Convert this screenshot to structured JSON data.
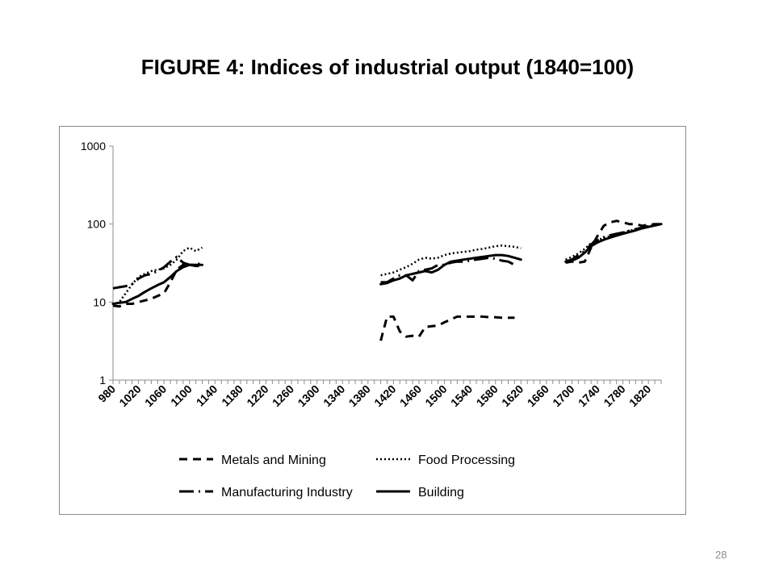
{
  "slide": {
    "title": "FIGURE 4: Indices of industrial output (1840=100)",
    "page_number": "28"
  },
  "chart_data": {
    "type": "line",
    "title": "",
    "xlabel": "",
    "ylabel": "",
    "y_scale": "log",
    "ylim": [
      1,
      1000
    ],
    "y_ticks": [
      1,
      10,
      100,
      1000
    ],
    "y_tick_labels": [
      "1",
      "10",
      "100",
      "1000"
    ],
    "xlim": [
      980,
      1840
    ],
    "x_ticks": [
      980,
      1020,
      1060,
      1100,
      1140,
      1180,
      1220,
      1260,
      1300,
      1340,
      1380,
      1420,
      1460,
      1500,
      1540,
      1580,
      1620,
      1660,
      1700,
      1740,
      1780,
      1820
    ],
    "x_tick_labels": [
      "980",
      "1020",
      "1060",
      "1100",
      "1140",
      "1180",
      "1220",
      "1260",
      "1300",
      "1340",
      "1380",
      "1420",
      "1460",
      "1500",
      "1540",
      "1580",
      "1620",
      "1660",
      "1700",
      "1740",
      "1780",
      "1820"
    ],
    "grid": false,
    "legend_position": "bottom",
    "series": [
      {
        "name": "Metals and Mining",
        "style": "dashed",
        "segments": [
          [
            [
              980,
              9
            ],
            [
              990,
              8.8
            ],
            [
              1000,
              9.5
            ],
            [
              1010,
              9.5
            ],
            [
              1020,
              10
            ],
            [
              1030,
              10.5
            ],
            [
              1040,
              11
            ],
            [
              1050,
              12
            ],
            [
              1060,
              13
            ],
            [
              1070,
              18
            ],
            [
              1080,
              26
            ],
            [
              1090,
              30
            ],
            [
              1100,
              30
            ],
            [
              1110,
              29
            ],
            [
              1120,
              29
            ]
          ],
          [
            [
              1400,
              3.2
            ],
            [
              1410,
              6.5
            ],
            [
              1420,
              6.5
            ],
            [
              1430,
              4.2
            ],
            [
              1440,
              3.6
            ],
            [
              1450,
              3.7
            ],
            [
              1460,
              3.6
            ],
            [
              1470,
              4.8
            ],
            [
              1480,
              4.9
            ],
            [
              1490,
              5.0
            ],
            [
              1500,
              5.5
            ],
            [
              1510,
              6.0
            ],
            [
              1520,
              6.5
            ],
            [
              1530,
              6.5
            ],
            [
              1540,
              6.5
            ],
            [
              1550,
              6.5
            ],
            [
              1560,
              6.5
            ],
            [
              1570,
              6.4
            ],
            [
              1580,
              6.4
            ],
            [
              1590,
              6.3
            ],
            [
              1600,
              6.3
            ],
            [
              1610,
              6.3
            ]
          ],
          [
            [
              1690,
              32
            ],
            [
              1700,
              33
            ],
            [
              1710,
              32
            ],
            [
              1720,
              33
            ],
            [
              1730,
              50
            ],
            [
              1740,
              70
            ],
            [
              1750,
              95
            ],
            [
              1760,
              105
            ],
            [
              1770,
              110
            ],
            [
              1780,
              105
            ],
            [
              1790,
              100
            ],
            [
              1800,
              100
            ],
            [
              1810,
              95
            ],
            [
              1820,
              98
            ],
            [
              1830,
              100
            ],
            [
              1840,
              100
            ]
          ]
        ]
      },
      {
        "name": "Food Processing",
        "style": "dotted",
        "segments": [
          [
            [
              980,
              9
            ],
            [
              990,
              10
            ],
            [
              1000,
              13
            ],
            [
              1010,
              17
            ],
            [
              1020,
              21
            ],
            [
              1030,
              23
            ],
            [
              1040,
              25
            ],
            [
              1050,
              26
            ],
            [
              1060,
              27
            ],
            [
              1070,
              30
            ],
            [
              1080,
              35
            ],
            [
              1090,
              45
            ],
            [
              1100,
              50
            ],
            [
              1110,
              45
            ],
            [
              1120,
              50
            ]
          ],
          [
            [
              1400,
              22
            ],
            [
              1410,
              23
            ],
            [
              1420,
              24
            ],
            [
              1430,
              26
            ],
            [
              1440,
              28
            ],
            [
              1450,
              31
            ],
            [
              1460,
              35
            ],
            [
              1470,
              37
            ],
            [
              1480,
              36
            ],
            [
              1490,
              37
            ],
            [
              1500,
              40
            ],
            [
              1510,
              42
            ],
            [
              1520,
              43
            ],
            [
              1530,
              44
            ],
            [
              1540,
              45
            ],
            [
              1550,
              47
            ],
            [
              1560,
              48
            ],
            [
              1570,
              50
            ],
            [
              1580,
              52
            ],
            [
              1590,
              53
            ],
            [
              1600,
              52
            ],
            [
              1610,
              51
            ],
            [
              1620,
              49
            ]
          ],
          [
            [
              1690,
              35
            ],
            [
              1700,
              38
            ],
            [
              1710,
              42
            ],
            [
              1720,
              48
            ],
            [
              1730,
              57
            ],
            [
              1740,
              63
            ],
            [
              1750,
              66
            ],
            [
              1760,
              70
            ],
            [
              1770,
              74
            ],
            [
              1780,
              78
            ],
            [
              1790,
              82
            ],
            [
              1800,
              86
            ],
            [
              1810,
              90
            ],
            [
              1820,
              94
            ],
            [
              1830,
              97
            ],
            [
              1840,
              100
            ]
          ]
        ]
      },
      {
        "name": "Manufacturing Industry",
        "style": "dash-dot",
        "segments": [
          [
            [
              980,
              15
            ],
            [
              990,
              15.5
            ],
            [
              1000,
              16
            ],
            [
              1010,
              17
            ],
            [
              1020,
              20
            ],
            [
              1030,
              22
            ],
            [
              1040,
              23
            ],
            [
              1050,
              25
            ],
            [
              1060,
              28
            ],
            [
              1070,
              33
            ],
            [
              1080,
              38
            ],
            [
              1090,
              32
            ],
            [
              1100,
              30
            ],
            [
              1110,
              30
            ],
            [
              1120,
              32
            ]
          ],
          [
            [
              1400,
              18
            ],
            [
              1410,
              18
            ],
            [
              1420,
              20
            ],
            [
              1430,
              22
            ],
            [
              1440,
              22
            ],
            [
              1450,
              19
            ],
            [
              1460,
              25
            ],
            [
              1470,
              26
            ],
            [
              1480,
              27
            ],
            [
              1490,
              30
            ],
            [
              1500,
              30
            ],
            [
              1510,
              32
            ],
            [
              1520,
              33
            ],
            [
              1530,
              33
            ],
            [
              1540,
              34
            ],
            [
              1550,
              35
            ],
            [
              1560,
              36
            ],
            [
              1570,
              37
            ],
            [
              1580,
              36
            ],
            [
              1590,
              34
            ],
            [
              1600,
              33
            ],
            [
              1610,
              30
            ]
          ],
          [
            [
              1690,
              33
            ],
            [
              1700,
              35
            ],
            [
              1710,
              40
            ],
            [
              1720,
              45
            ],
            [
              1730,
              55
            ],
            [
              1740,
              62
            ],
            [
              1750,
              68
            ],
            [
              1760,
              72
            ],
            [
              1770,
              75
            ],
            [
              1780,
              78
            ],
            [
              1790,
              82
            ],
            [
              1800,
              86
            ],
            [
              1810,
              90
            ],
            [
              1820,
              94
            ],
            [
              1830,
              97
            ],
            [
              1840,
              100
            ]
          ]
        ]
      },
      {
        "name": "Building",
        "style": "solid",
        "segments": [
          [
            [
              980,
              9.5
            ],
            [
              990,
              9.8
            ],
            [
              1000,
              10
            ],
            [
              1010,
              11
            ],
            [
              1020,
              12
            ],
            [
              1030,
              13.5
            ],
            [
              1040,
              15
            ],
            [
              1050,
              16.5
            ],
            [
              1060,
              18
            ],
            [
              1070,
              21
            ],
            [
              1080,
              25
            ],
            [
              1090,
              28
            ],
            [
              1100,
              30
            ],
            [
              1110,
              30
            ],
            [
              1120,
              30
            ]
          ],
          [
            [
              1400,
              17
            ],
            [
              1410,
              17.5
            ],
            [
              1420,
              19
            ],
            [
              1430,
              20
            ],
            [
              1440,
              22
            ],
            [
              1450,
              23
            ],
            [
              1460,
              24
            ],
            [
              1470,
              25
            ],
            [
              1480,
              24
            ],
            [
              1490,
              26
            ],
            [
              1500,
              30
            ],
            [
              1510,
              33
            ],
            [
              1520,
              34
            ],
            [
              1530,
              35
            ],
            [
              1540,
              36
            ],
            [
              1550,
              37
            ],
            [
              1560,
              38
            ],
            [
              1570,
              39
            ],
            [
              1580,
              40
            ],
            [
              1590,
              40
            ],
            [
              1600,
              39
            ],
            [
              1610,
              37
            ],
            [
              1620,
              35
            ]
          ],
          [
            [
              1690,
              33
            ],
            [
              1700,
              34
            ],
            [
              1710,
              37
            ],
            [
              1720,
              43
            ],
            [
              1730,
              52
            ],
            [
              1740,
              58
            ],
            [
              1750,
              63
            ],
            [
              1760,
              67
            ],
            [
              1770,
              71
            ],
            [
              1780,
              75
            ],
            [
              1790,
              79
            ],
            [
              1800,
              83
            ],
            [
              1810,
              88
            ],
            [
              1820,
              92
            ],
            [
              1830,
              96
            ],
            [
              1840,
              100
            ]
          ]
        ]
      }
    ],
    "stroke_color": "#000000"
  }
}
